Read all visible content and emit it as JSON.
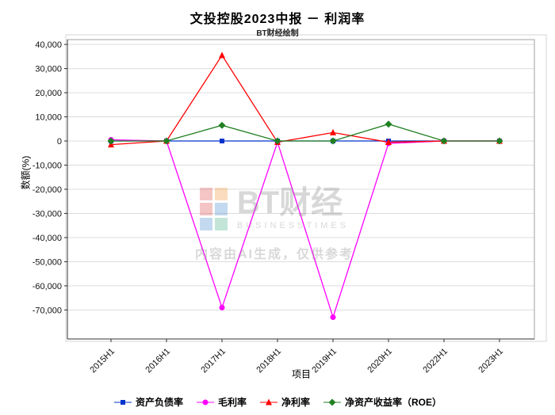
{
  "watermark": {
    "logo_text": "BT财经",
    "logo_subtext": "BUSINESSTIMES",
    "disclaimer": "内容由AI生成，仅供参考",
    "logo_colors": [
      "#e05252",
      "#f09a3c",
      "#e05252",
      "#4d8fd1",
      "#4d8fd1",
      "#49b38a"
    ]
  },
  "chart_data": {
    "type": "line",
    "title": "文投控股2023中报 － 利润率",
    "subtitle": "BT财经绘制",
    "xlabel": "项目",
    "ylabel": "数额(%)",
    "categories": [
      "2015H1",
      "2016H1",
      "2017H1",
      "2018H1",
      "2019H1",
      "2020H1",
      "2022H1",
      "2023H1"
    ],
    "ylim": [
      -82000,
      42000
    ],
    "yticks": [
      40000,
      30000,
      20000,
      10000,
      0,
      -10000,
      -20000,
      -30000,
      -40000,
      -50000,
      -60000,
      -70000
    ],
    "grid": true,
    "legend_position": "bottom",
    "series": [
      {
        "name": "资产负债率",
        "marker": "square",
        "color": "#0033cc",
        "values": [
          0,
          0,
          0,
          0,
          0,
          0,
          0,
          0
        ]
      },
      {
        "name": "毛利率",
        "marker": "circle",
        "color": "#ff00ff",
        "values": [
          500,
          0,
          -69000,
          -500,
          -73000,
          -1000,
          0,
          0
        ]
      },
      {
        "name": "净利率",
        "marker": "triangle",
        "color": "#ff0000",
        "values": [
          -1500,
          0,
          35500,
          -500,
          3500,
          -500,
          0,
          0
        ]
      },
      {
        "name": "净资产收益率（ROE）",
        "marker": "diamond",
        "color": "#208020",
        "values": [
          0,
          0,
          6500,
          0,
          0,
          7000,
          0,
          0
        ]
      }
    ]
  }
}
